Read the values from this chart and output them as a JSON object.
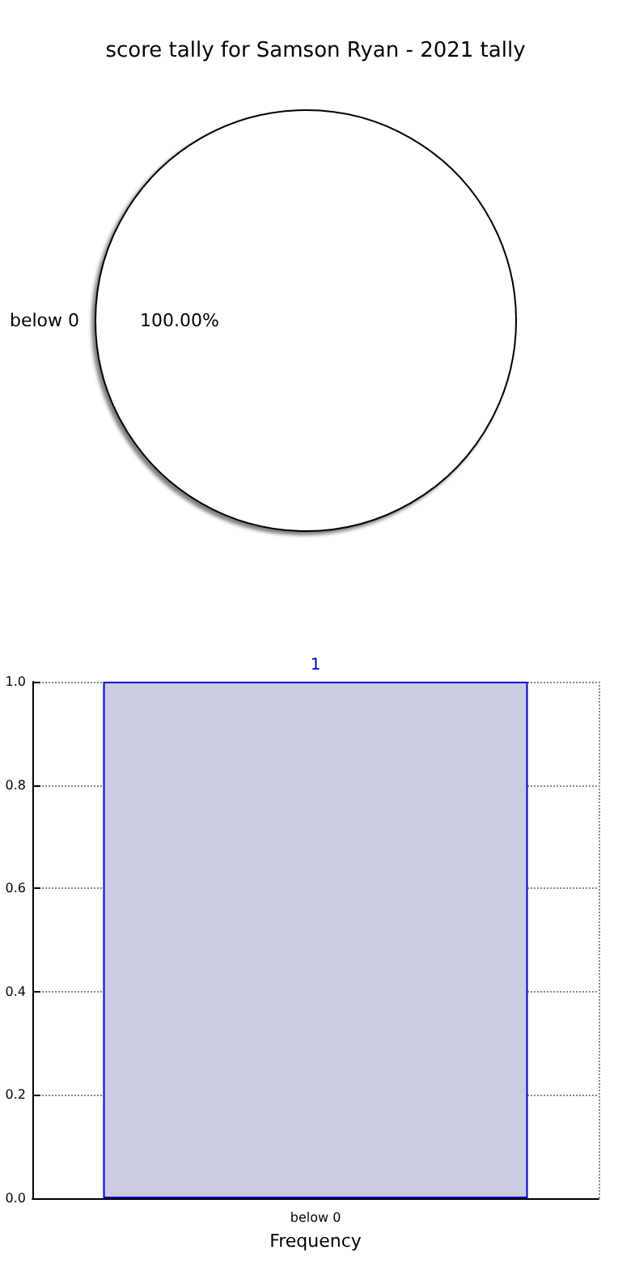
{
  "chart_data": [
    {
      "type": "pie",
      "title": "score tally for Samson Ryan - 2021 tally",
      "categories": [
        "below 0"
      ],
      "values": [
        100
      ],
      "colors": [
        "#ffffff"
      ],
      "value_labels": [
        "100.00%"
      ],
      "legend": false
    },
    {
      "type": "bar",
      "categories": [
        "below 0"
      ],
      "values": [
        1
      ],
      "color": "#cbcbe3",
      "xlabel": "Frequency",
      "ylim": [
        0,
        1
      ],
      "yticks": [
        {
          "value": 0,
          "label": "0.0"
        },
        {
          "value": 0.2,
          "label": "0.2"
        },
        {
          "value": 0.4,
          "label": "0.4"
        },
        {
          "value": 0.6,
          "label": "0.6"
        },
        {
          "value": 0.8,
          "label": "0.8"
        },
        {
          "value": 1,
          "label": "1.0"
        }
      ],
      "grid": true,
      "data_labels": true,
      "legend": false
    }
  ]
}
